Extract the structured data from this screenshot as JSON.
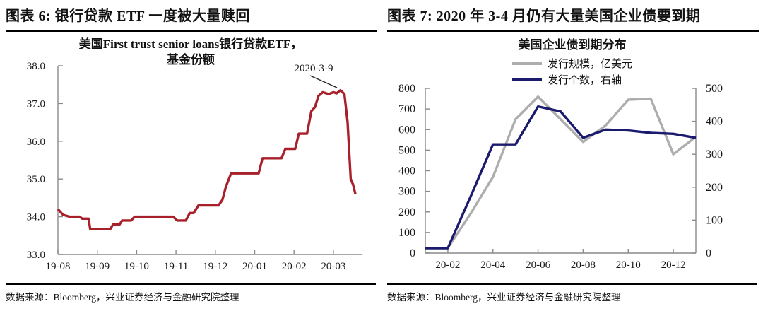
{
  "figures": [
    {
      "header": "图表 6:  银行贷款 ETF 一度被大量赎回",
      "source": "数据来源：Bloomberg，兴业证券经济与金融研究院整理"
    },
    {
      "header": "图表 7:  2020 年 3-4 月仍有大量美国企业债要到期",
      "source": "数据来源：Bloomberg，兴业证券经济与金融研究院整理"
    }
  ],
  "chart_data": [
    {
      "type": "line",
      "title_line1": "美国First trust senior loans银行贷款ETF，",
      "title_line2": "基金份额",
      "x_unit": "months since 19-08",
      "x_tick_labels": [
        "19-08",
        "19-09",
        "19-10",
        "19-11",
        "19-12",
        "20-01",
        "20-02",
        "20-03"
      ],
      "y_tick_labels": [
        "33.0",
        "34.0",
        "35.0",
        "36.0",
        "37.0",
        "38.0"
      ],
      "ylim": [
        33.0,
        38.0
      ],
      "grid": false,
      "annotation": {
        "text": "2020-3-9",
        "target_value": 37.35
      },
      "series": [
        {
          "name": "基金份额",
          "color": "#A8202A",
          "points": [
            [
              0,
              34.2
            ],
            [
              0.13,
              34.05
            ],
            [
              0.3,
              34.0
            ],
            [
              0.55,
              34.0
            ],
            [
              0.62,
              33.95
            ],
            [
              0.78,
              33.95
            ],
            [
              0.82,
              33.67
            ],
            [
              1.33,
              33.67
            ],
            [
              1.4,
              33.8
            ],
            [
              1.57,
              33.8
            ],
            [
              1.63,
              33.9
            ],
            [
              1.86,
              33.9
            ],
            [
              1.95,
              34.0
            ],
            [
              2.93,
              34.0
            ],
            [
              3.03,
              33.9
            ],
            [
              3.25,
              33.9
            ],
            [
              3.35,
              34.1
            ],
            [
              3.45,
              34.1
            ],
            [
              3.57,
              34.3
            ],
            [
              4.08,
              34.3
            ],
            [
              4.18,
              34.45
            ],
            [
              4.27,
              34.8
            ],
            [
              4.4,
              35.15
            ],
            [
              5.1,
              35.15
            ],
            [
              5.2,
              35.55
            ],
            [
              5.68,
              35.55
            ],
            [
              5.78,
              35.8
            ],
            [
              6.03,
              35.8
            ],
            [
              6.12,
              36.2
            ],
            [
              6.33,
              36.2
            ],
            [
              6.44,
              36.8
            ],
            [
              6.53,
              36.9
            ],
            [
              6.62,
              37.2
            ],
            [
              6.73,
              37.3
            ],
            [
              6.88,
              37.25
            ],
            [
              7.0,
              37.3
            ],
            [
              7.08,
              37.27
            ],
            [
              7.18,
              37.35
            ],
            [
              7.28,
              37.25
            ],
            [
              7.36,
              36.5
            ],
            [
              7.44,
              35.0
            ],
            [
              7.5,
              34.85
            ],
            [
              7.56,
              34.6
            ]
          ]
        }
      ]
    },
    {
      "type": "line",
      "title": "美国企业债到期分布",
      "categories": [
        "20-01",
        "20-02",
        "20-03",
        "20-04",
        "20-05",
        "20-06",
        "20-07",
        "20-08",
        "20-09",
        "20-10",
        "20-11",
        "20-12",
        "21-01"
      ],
      "x_tick_labels": [
        "20-02",
        "20-04",
        "20-06",
        "20-08",
        "20-10",
        "20-12"
      ],
      "left_ylim": [
        0,
        800
      ],
      "left_y_tick_labels": [
        "0",
        "100",
        "200",
        "300",
        "400",
        "500",
        "600",
        "700",
        "800"
      ],
      "right_ylim": [
        0,
        500
      ],
      "right_y_tick_labels": [
        "0",
        "100",
        "200",
        "300",
        "400",
        "500"
      ],
      "grid": false,
      "legend_position": "top",
      "series": [
        {
          "name": "发行规模，亿美元",
          "axis": "left",
          "color": "#ADADAD",
          "values": [
            25,
            25,
            190,
            370,
            650,
            760,
            650,
            540,
            620,
            745,
            750,
            480,
            565
          ]
        },
        {
          "name": "发行个数，右轴",
          "axis": "right",
          "color": "#1B1B6E",
          "values": [
            15,
            15,
            170,
            330,
            330,
            445,
            430,
            350,
            375,
            372,
            365,
            362,
            350
          ]
        }
      ]
    }
  ]
}
